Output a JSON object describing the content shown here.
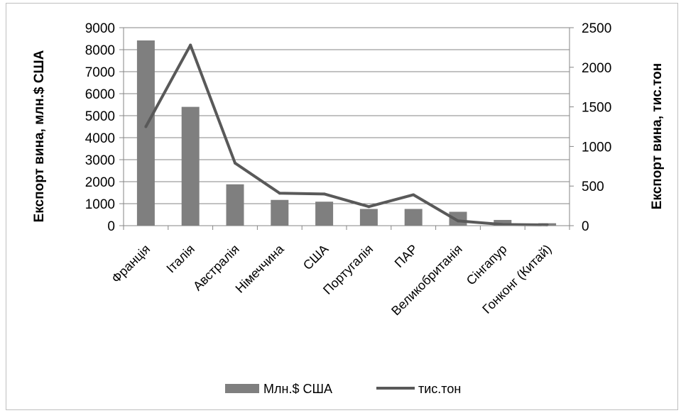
{
  "chart_data": {
    "type": "bar",
    "categories": [
      "Франція",
      "Італія",
      "Австралія",
      "Німеччина",
      "США",
      "Португалія",
      "ПАР",
      "Великобританія",
      "Сінгапур",
      "Гонконг (Китай)"
    ],
    "series": [
      {
        "name": "Млн.$ США",
        "type": "bar",
        "axis": "left",
        "color": "#7f7f7f",
        "values": [
          8420,
          5400,
          1880,
          1170,
          1090,
          760,
          760,
          630,
          260,
          110
        ]
      },
      {
        "name": "тис.тон",
        "type": "line",
        "axis": "right",
        "color": "#595959",
        "values": [
          1250,
          2280,
          790,
          410,
          400,
          240,
          390,
          60,
          15,
          10
        ]
      }
    ],
    "ylabel": "Експорт вина, млн.$ США",
    "y2label": "Експорт вина, тис.тон",
    "ylim": [
      0,
      9000
    ],
    "y2lim": [
      0,
      2500
    ],
    "yticks": [
      0,
      1000,
      2000,
      3000,
      4000,
      5000,
      6000,
      7000,
      8000,
      9000
    ],
    "y2ticks": [
      0,
      500,
      1000,
      1500,
      2000,
      2500
    ],
    "grid": true,
    "legend_position": "bottom"
  }
}
